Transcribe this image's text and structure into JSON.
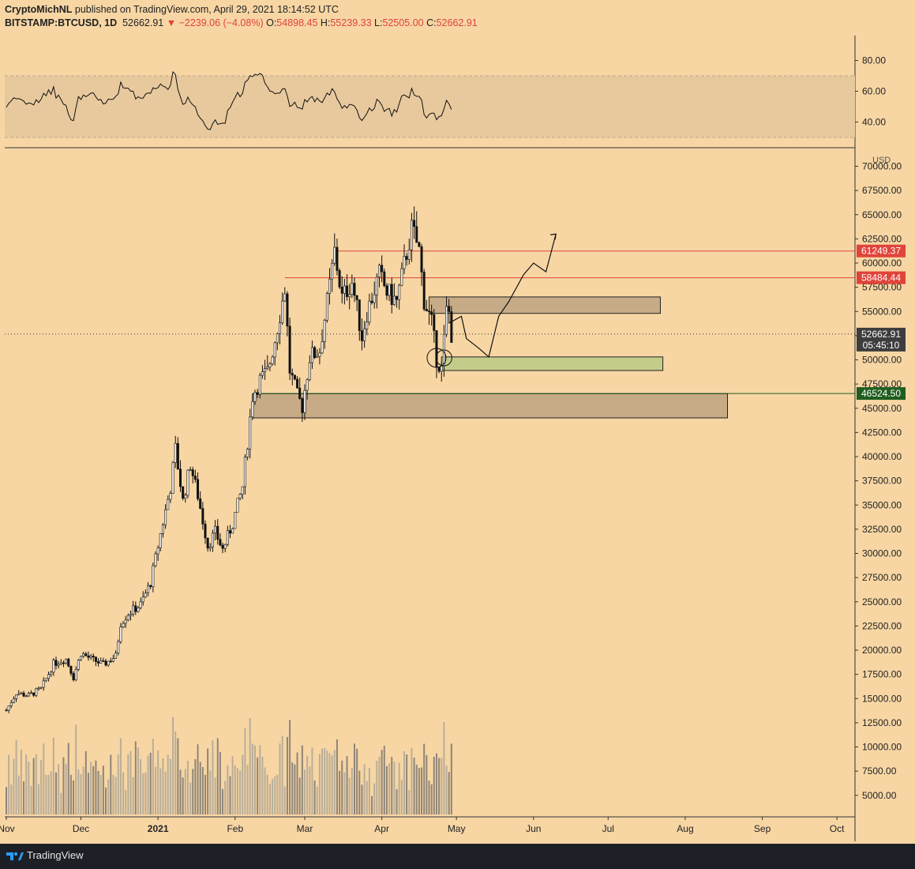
{
  "header": {
    "author": "CryptoMichNL",
    "published": "published on TradingView.com, April 29, 2021 18:14:52 UTC",
    "symbol": "BITSTAMP:BTCUSD, 1D",
    "price": "52662.91",
    "change": "−2239.06 (−4.08%)",
    "o_label": "O:",
    "o_value": "54898.45",
    "h_label": "H:",
    "h_value": "55239.33",
    "l_label": "L:",
    "l_value": "52505.00",
    "c_label": "C:",
    "c_value": "52662.91"
  },
  "footer": {
    "brand": "TradingView"
  },
  "colors": {
    "background": "#f7d6a4",
    "resistance_line": "#e0433a",
    "support_line": "#1f5e1f",
    "support_zone": "#c5b98a",
    "price_label_bg": "#3d3d3d",
    "footer_bg": "#1d1f26"
  },
  "chart_data": {
    "type": "candlestick",
    "symbol": "BITSTAMP:BTCUSD",
    "timeframe": "1D",
    "currency_label": "USD",
    "price_axis_ticks": [
      "70000.00",
      "67500.00",
      "65000.00",
      "62500.00",
      "60000.00",
      "57500.00",
      "55000.00",
      "52500.00",
      "50000.00",
      "47500.00",
      "45000.00",
      "42500.00",
      "40000.00",
      "37500.00",
      "35000.00",
      "32500.00",
      "30000.00",
      "27500.00",
      "25000.00",
      "22500.00",
      "20000.00",
      "17500.00",
      "15000.00",
      "12500.00",
      "10000.00",
      "7500.00",
      "5000.00"
    ],
    "rsi_axis_ticks": [
      "80.00",
      "60.00",
      "40.00"
    ],
    "x_axis_labels": [
      "Nov",
      "Dec",
      "2021",
      "Feb",
      "Mar",
      "Apr",
      "May",
      "Jun",
      "Jul",
      "Aug",
      "Sep",
      "Oct"
    ],
    "price_labels": [
      {
        "value": "61249.37",
        "price": 61249.37,
        "style": "resistance"
      },
      {
        "value": "58484.44",
        "price": 58484.44,
        "style": "resistance"
      },
      {
        "value": "52662.91",
        "price": 52662.91,
        "style": "last",
        "countdown": "05:45:10"
      },
      {
        "value": "46524.50",
        "price": 46524.5,
        "style": "support"
      }
    ],
    "zones": [
      {
        "name": "resistance-zone",
        "top": 56500,
        "bottom": 54800,
        "start": "2021-04-20",
        "end": "2021-07-22"
      },
      {
        "name": "support-zone-green",
        "top": 50300,
        "bottom": 48900,
        "start": "2021-04-25",
        "end": "2021-07-23"
      },
      {
        "name": "support-zone-large",
        "top": 46500,
        "bottom": 44000,
        "start": "2021-02-08",
        "end": "2021-08-18"
      }
    ],
    "rsi_band": [
      30,
      70
    ],
    "ohlc_daily_approx": [
      {
        "date": "2020-11-01",
        "close": 13800
      },
      {
        "date": "2020-11-05",
        "close": 15600
      },
      {
        "date": "2020-11-10",
        "close": 15300
      },
      {
        "date": "2020-11-15",
        "close": 16000
      },
      {
        "date": "2020-11-20",
        "close": 18600
      },
      {
        "date": "2020-11-25",
        "close": 19100
      },
      {
        "date": "2020-11-28",
        "close": 17200
      },
      {
        "date": "2020-12-01",
        "close": 19700
      },
      {
        "date": "2020-12-05",
        "close": 19100
      },
      {
        "date": "2020-12-10",
        "close": 18500
      },
      {
        "date": "2020-12-15",
        "close": 19400
      },
      {
        "date": "2020-12-17",
        "close": 22800
      },
      {
        "date": "2020-12-20",
        "close": 23800
      },
      {
        "date": "2020-12-25",
        "close": 24700
      },
      {
        "date": "2020-12-29",
        "close": 27000
      },
      {
        "date": "2021-01-02",
        "close": 32000
      },
      {
        "date": "2021-01-06",
        "close": 36800
      },
      {
        "date": "2021-01-08",
        "close": 40800
      },
      {
        "date": "2021-01-11",
        "close": 35400
      },
      {
        "date": "2021-01-14",
        "close": 39200
      },
      {
        "date": "2021-01-17",
        "close": 36000
      },
      {
        "date": "2021-01-21",
        "close": 30800
      },
      {
        "date": "2021-01-24",
        "close": 32200
      },
      {
        "date": "2021-01-27",
        "close": 30400
      },
      {
        "date": "2021-01-31",
        "close": 33100
      },
      {
        "date": "2021-02-04",
        "close": 36900
      },
      {
        "date": "2021-02-08",
        "close": 46300
      },
      {
        "date": "2021-02-11",
        "close": 47900
      },
      {
        "date": "2021-02-14",
        "close": 48700
      },
      {
        "date": "2021-02-17",
        "close": 52100
      },
      {
        "date": "2021-02-21",
        "close": 57400
      },
      {
        "date": "2021-02-23",
        "close": 48900
      },
      {
        "date": "2021-02-26",
        "close": 46200
      },
      {
        "date": "2021-02-28",
        "close": 45200
      },
      {
        "date": "2021-03-03",
        "close": 50300
      },
      {
        "date": "2021-03-07",
        "close": 51000
      },
      {
        "date": "2021-03-10",
        "close": 55900
      },
      {
        "date": "2021-03-13",
        "close": 61200
      },
      {
        "date": "2021-03-16",
        "close": 56400
      },
      {
        "date": "2021-03-20",
        "close": 58100
      },
      {
        "date": "2021-03-24",
        "close": 52400
      },
      {
        "date": "2021-03-26",
        "close": 54900
      },
      {
        "date": "2021-03-31",
        "close": 58800
      },
      {
        "date": "2021-04-03",
        "close": 57000
      },
      {
        "date": "2021-04-07",
        "close": 56000
      },
      {
        "date": "2021-04-10",
        "close": 59800
      },
      {
        "date": "2021-04-13",
        "close": 63500
      },
      {
        "date": "2021-04-14",
        "close": 62900
      },
      {
        "date": "2021-04-16",
        "close": 61300
      },
      {
        "date": "2021-04-18",
        "close": 56200
      },
      {
        "date": "2021-04-21",
        "close": 53800
      },
      {
        "date": "2021-04-23",
        "close": 50200
      },
      {
        "date": "2021-04-25",
        "close": 49000
      },
      {
        "date": "2021-04-27",
        "close": 55000
      },
      {
        "date": "2021-04-28",
        "close": 54900
      },
      {
        "date": "2021-04-29",
        "close": 52662.91
      }
    ]
  }
}
